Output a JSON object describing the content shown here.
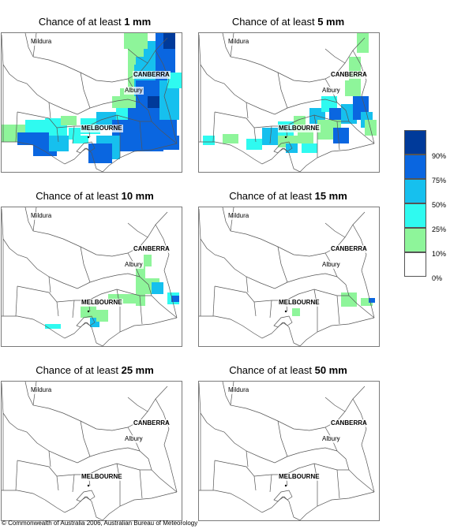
{
  "panels": [
    {
      "prefix": "Chance of at least ",
      "amount": "1 mm",
      "key": "p1"
    },
    {
      "prefix": "Chance of at least ",
      "amount": "5 mm",
      "key": "p5"
    },
    {
      "prefix": "Chance of at least ",
      "amount": "10 mm",
      "key": "p10"
    },
    {
      "prefix": "Chance of at least ",
      "amount": "15 mm",
      "key": "p15"
    },
    {
      "prefix": "Chance of at least ",
      "amount": "25 mm",
      "key": "p25"
    },
    {
      "prefix": "Chance of at least ",
      "amount": "50 mm",
      "key": "p50"
    }
  ],
  "cities": {
    "mildura": "Mildura",
    "canberra": "CANBERRA",
    "albury": "Albury",
    "melbourne": "MELBOURNE"
  },
  "legend": {
    "labels": [
      "90%",
      "75%",
      "50%",
      "25%",
      "10%",
      "0%"
    ],
    "colors": [
      "#003a9a",
      "#0a66e0",
      "#16c0ee",
      "#2ffaf0",
      "#8ef59a",
      "#ffffff"
    ]
  },
  "copyright": "© Commonwealth of Australia 2006, Australian Bureau of Meteorology"
}
